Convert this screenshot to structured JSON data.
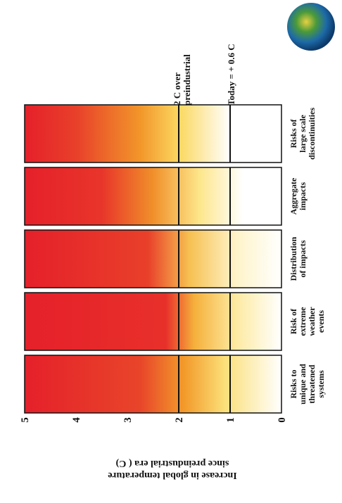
{
  "axis_label": [
    "Increase in global temperature",
    "since preindustrial era ( C)"
  ],
  "ticks": [
    0,
    1,
    2,
    3,
    4,
    5
  ],
  "categories": [
    [
      "Risks to",
      "unique and",
      "threatened",
      "systems"
    ],
    [
      "Risk of",
      "extreme",
      "weather",
      "events"
    ],
    [
      "Distribution",
      "of impacts"
    ],
    [
      "Aggregate",
      "impacts"
    ],
    [
      "Risks of",
      "large scale",
      "discontinuities"
    ]
  ],
  "annotations": [
    [
      "2 C over",
      "preindustrial"
    ],
    [
      "Today = + 0.6 C"
    ]
  ]
}
